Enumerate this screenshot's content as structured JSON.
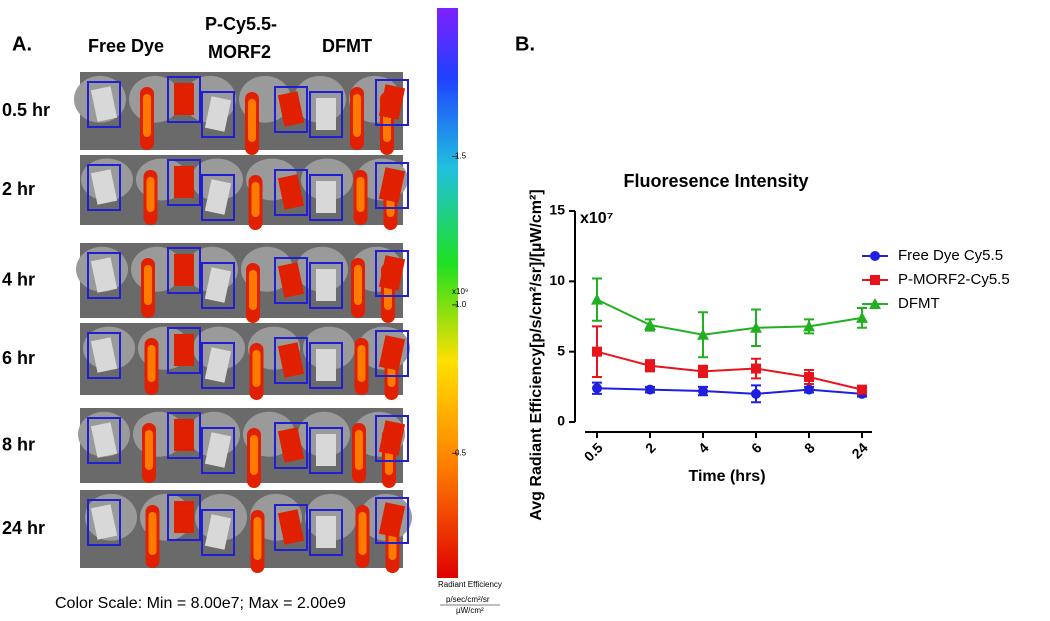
{
  "panel_a": {
    "label": "A.",
    "columns": [
      "Free Dye",
      "P-Cy5.5-",
      "MORF2",
      "DFMT"
    ],
    "rows": [
      "0.5 hr",
      "2 hr",
      "4 hr",
      "6 hr",
      "8 hr",
      "24 hr"
    ],
    "caption": "Color Scale: Min = 8.00e7; Max = 2.00e9"
  },
  "colorbar": {
    "lim": [
      0.08,
      2.0
    ],
    "ticks": [
      0.5,
      {
        "value": 1.0,
        "label": "1.0"
      },
      1.5
    ],
    "multiplier": "x10⁹",
    "title": "Radiant Efficiency",
    "unit_top": "p/sec/cm²/sr",
    "unit_bottom": "µW/cm²"
  },
  "chart_data": {
    "type": "line",
    "panel_label": "B.",
    "title": "Fluoresence Intensity",
    "x_label": "Time (hrs)",
    "y_label": "Avg Radiant Efficiency[p/s/cm²/sr]/[µW/cm²]",
    "y_multiplier": "x10⁷",
    "categories": [
      "0.5",
      "2",
      "4",
      "6",
      "8",
      "24"
    ],
    "ylim": [
      0,
      15
    ],
    "yticks": [
      0,
      5,
      10,
      15
    ],
    "legend": "upper right",
    "series": [
      {
        "name": "Free Dye Cy5.5",
        "color": "#1f1fe0",
        "marker": "circle",
        "values": [
          2.4,
          2.3,
          2.2,
          2.0,
          2.3,
          2.0
        ],
        "errors": [
          0.4,
          0.2,
          0.3,
          0.6,
          0.2,
          0.2
        ]
      },
      {
        "name": "P-MORF2-Cy5.5",
        "color": "#e8141c",
        "marker": "square",
        "values": [
          5.0,
          4.0,
          3.6,
          3.8,
          3.2,
          2.3
        ],
        "errors": [
          1.8,
          0.4,
          0.4,
          0.7,
          0.5,
          0.2
        ]
      },
      {
        "name": "DFMT",
        "color": "#22b022",
        "marker": "triangle",
        "values": [
          8.7,
          6.9,
          6.2,
          6.7,
          6.8,
          7.4
        ],
        "errors": [
          1.5,
          0.4,
          1.6,
          1.3,
          0.5,
          0.7
        ]
      }
    ]
  }
}
